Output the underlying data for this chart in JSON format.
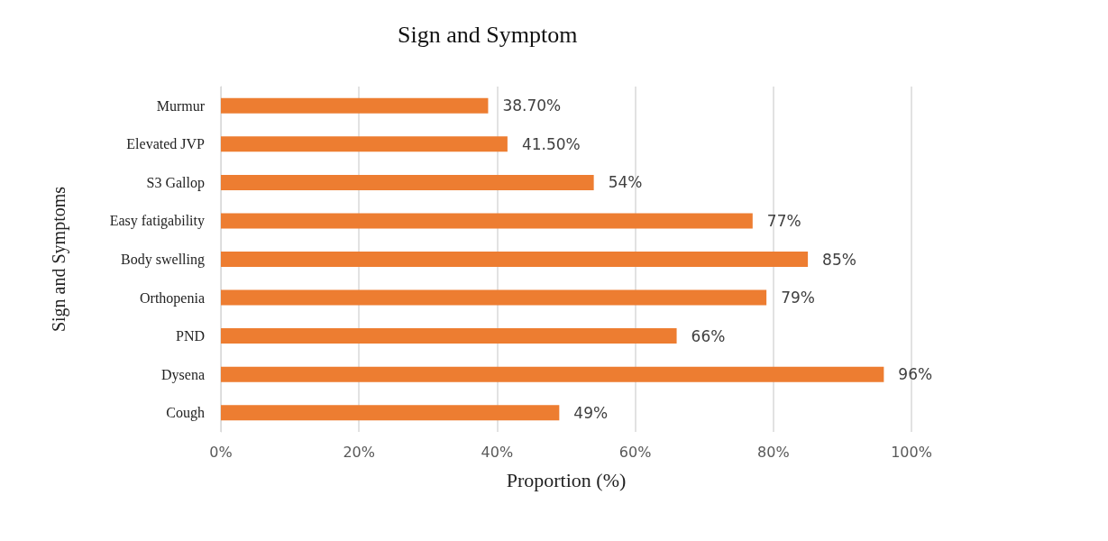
{
  "chart_data": {
    "type": "bar",
    "orientation": "horizontal",
    "title": "Sign and Symptom",
    "xlabel": "Proportion (%)",
    "ylabel": "Sign and Symptoms",
    "categories": [
      "Murmur",
      "Elevated JVP",
      "S3 Gallop",
      "Easy fatigability",
      "Body swelling",
      "Orthopenia",
      "PND",
      "Dysena",
      "Cough"
    ],
    "values": [
      38.7,
      41.5,
      54,
      77,
      85,
      79,
      66,
      96,
      49
    ],
    "value_labels": [
      "38.70%",
      "41.50%",
      "54%",
      "77%",
      "85%",
      "79%",
      "66%",
      "96%",
      "49%"
    ],
    "color": "#ed7d31",
    "xlim": [
      0,
      100
    ],
    "xticks": [
      {
        "value": 0,
        "label": "0%"
      },
      {
        "value": 20,
        "label": "20%"
      },
      {
        "value": 40,
        "label": "40%"
      },
      {
        "value": 60,
        "label": "60%"
      },
      {
        "value": 80,
        "label": "80%"
      },
      {
        "value": 100,
        "label": "100%"
      }
    ],
    "grid": "x"
  }
}
